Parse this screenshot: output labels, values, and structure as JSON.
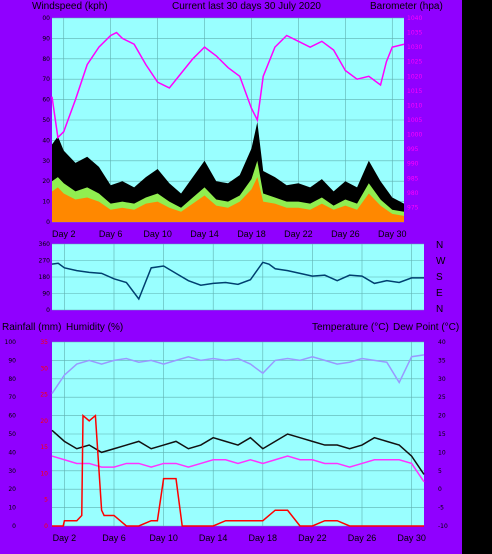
{
  "header": {
    "left": "Windspeed (kph)",
    "center": "Current last 30 days 30 July 2020",
    "right": "Barometer (hpa)"
  },
  "direction_labels": [
    "N",
    "W",
    "S",
    "E",
    "N"
  ],
  "lower_header": {
    "left1": "Rainfall (mm)",
    "left2": "Humidity (%)",
    "right1": "Temperature (°C)",
    "right2": "Dew Point (°C)"
  },
  "colors": {
    "frame": "#9000ff",
    "plot_bg": "#99ffff",
    "grid": "#5fb0b0",
    "barometer": "#ff00ff",
    "gust": "#000000",
    "wind_avg": "#90ee50",
    "wind_speed": "#ff8800",
    "direction": "#004070",
    "humidity": "#9999ff",
    "temperature": "#111111",
    "dewpoint": "#ff33ff",
    "rainfall": "#ff0000"
  },
  "chart_data": [
    {
      "type": "line",
      "title": "Current last 30 days 30 July 2020",
      "xlabel": "",
      "ylabel": "Windspeed (kph)",
      "y2label": "Barometer (hpa)",
      "x_ticks": [
        "Day 2",
        "Day 6",
        "Day 10",
        "Day 14",
        "Day 18",
        "Day 22",
        "Day 26",
        "Day 30"
      ],
      "x_tick_days": [
        2,
        6,
        10,
        14,
        18,
        22,
        26,
        30
      ],
      "xlim": [
        1,
        31
      ],
      "ylim": [
        0,
        100
      ],
      "y_ticks": [
        0,
        10,
        20,
        30,
        40,
        50,
        60,
        70,
        80,
        90,
        100
      ],
      "y2lim": [
        970,
        1040
      ],
      "y2_ticks": [
        975,
        980,
        985,
        990,
        995,
        1000,
        1005,
        1010,
        1015,
        1020,
        1025,
        1030,
        1035,
        1040
      ],
      "grid": true,
      "series": [
        {
          "name": "Barometer",
          "axis": "right",
          "x": [
            1,
            1.5,
            2,
            3,
            4,
            5,
            6,
            6.5,
            7,
            8,
            9,
            10,
            11,
            12,
            13,
            14,
            15,
            16,
            17,
            18,
            18.5,
            19,
            20,
            21,
            22,
            23,
            24,
            25,
            26,
            27,
            28,
            29,
            29.5,
            30,
            31
          ],
          "y": [
            1013,
            999,
            1001,
            1012,
            1024,
            1030,
            1034,
            1035,
            1033,
            1031,
            1024,
            1018,
            1016,
            1021,
            1026,
            1030,
            1027,
            1023,
            1020,
            1009,
            1005,
            1020,
            1030,
            1034,
            1032,
            1030,
            1032,
            1029,
            1022,
            1019,
            1020,
            1017,
            1025,
            1030,
            1031
          ]
        },
        {
          "name": "Gust",
          "axis": "left",
          "x": [
            1,
            1.5,
            2,
            3,
            4,
            5,
            6,
            7,
            8,
            9,
            10,
            11,
            12,
            13,
            14,
            15,
            16,
            17,
            18,
            18.5,
            19,
            20,
            21,
            22,
            23,
            24,
            25,
            26,
            27,
            28,
            29,
            30,
            31
          ],
          "y": [
            38,
            42,
            35,
            29,
            32,
            27,
            18,
            20,
            17,
            22,
            26,
            19,
            14,
            22,
            30,
            20,
            19,
            23,
            36,
            49,
            25,
            22,
            18,
            19,
            17,
            21,
            15,
            20,
            17,
            30,
            20,
            12,
            9
          ]
        },
        {
          "name": "Average",
          "axis": "left",
          "x": [
            1,
            1.5,
            2,
            3,
            4,
            5,
            6,
            7,
            8,
            9,
            10,
            11,
            12,
            13,
            14,
            15,
            16,
            17,
            18,
            18.5,
            19,
            20,
            21,
            22,
            23,
            24,
            25,
            26,
            27,
            28,
            29,
            30,
            31
          ],
          "y": [
            20,
            22,
            19,
            15,
            17,
            14,
            9,
            10,
            9,
            12,
            14,
            10,
            7,
            12,
            17,
            11,
            10,
            13,
            21,
            30,
            14,
            12,
            10,
            10,
            9,
            12,
            8,
            11,
            9,
            19,
            11,
            6,
            5
          ]
        },
        {
          "name": "Speed",
          "axis": "left",
          "x": [
            1,
            1.5,
            2,
            3,
            4,
            5,
            6,
            7,
            8,
            9,
            10,
            11,
            12,
            13,
            14,
            15,
            16,
            17,
            18,
            18.5,
            19,
            20,
            21,
            22,
            23,
            24,
            25,
            26,
            27,
            28,
            29,
            30,
            31
          ],
          "y": [
            15,
            17,
            14,
            11,
            12,
            10,
            6,
            7,
            6,
            9,
            10,
            7,
            5,
            9,
            13,
            8,
            7,
            10,
            16,
            22,
            10,
            9,
            7,
            7,
            6,
            9,
            6,
            8,
            6,
            14,
            8,
            4,
            3
          ]
        }
      ]
    },
    {
      "type": "line",
      "title": "",
      "ylabel": "",
      "y2_ticks": [
        "N",
        "W",
        "S",
        "E",
        "N"
      ],
      "ylim": [
        0,
        360
      ],
      "y_ticks": [
        0,
        90,
        180,
        270,
        360
      ],
      "xlim": [
        1,
        31
      ],
      "series": [
        {
          "name": "Direction",
          "x": [
            1,
            1.5,
            2,
            3,
            4,
            5,
            6,
            7,
            8,
            9,
            10,
            11,
            12,
            13,
            14,
            15,
            16,
            17,
            18,
            18.5,
            19,
            20,
            21,
            22,
            23,
            24,
            25,
            26,
            27,
            28,
            29,
            30,
            31
          ],
          "y": [
            250,
            255,
            230,
            215,
            205,
            200,
            170,
            150,
            60,
            230,
            240,
            200,
            160,
            135,
            145,
            150,
            140,
            165,
            260,
            250,
            225,
            215,
            200,
            185,
            190,
            160,
            190,
            185,
            145,
            160,
            150,
            175,
            175
          ]
        }
      ]
    },
    {
      "type": "line",
      "title": "",
      "ylabel": "Rainfall (mm) / Humidity (%)",
      "y2label": "Temperature (°C) / Dew Point (°C)",
      "ylim": [
        0,
        100
      ],
      "y_ticks": [
        0,
        10,
        20,
        30,
        40,
        50,
        60,
        70,
        80,
        90,
        100
      ],
      "rain_ticks": [
        0,
        5,
        10,
        15,
        20,
        25,
        30,
        35
      ],
      "y2lim": [
        -10,
        40
      ],
      "y2_ticks": [
        -10,
        -5,
        0,
        5,
        10,
        15,
        20,
        25,
        30,
        35,
        40
      ],
      "xlim": [
        1,
        31
      ],
      "grid": true,
      "series": [
        {
          "name": "Humidity",
          "axis": "left",
          "x": [
            1,
            2,
            3,
            4,
            5,
            6,
            7,
            8,
            9,
            10,
            11,
            12,
            13,
            14,
            15,
            16,
            17,
            18,
            19,
            20,
            21,
            22,
            23,
            24,
            25,
            26,
            27,
            28,
            29,
            30,
            31
          ],
          "y": [
            72,
            82,
            88,
            90,
            88,
            90,
            91,
            89,
            90,
            88,
            90,
            92,
            90,
            91,
            90,
            91,
            88,
            83,
            90,
            91,
            90,
            92,
            90,
            88,
            89,
            91,
            90,
            89,
            78,
            92,
            93
          ]
        },
        {
          "name": "Temperature",
          "axis": "right",
          "x": [
            1,
            2,
            3,
            4,
            5,
            6,
            7,
            8,
            9,
            10,
            11,
            12,
            13,
            14,
            15,
            16,
            17,
            18,
            19,
            20,
            21,
            22,
            23,
            24,
            25,
            26,
            27,
            28,
            29,
            30,
            31
          ],
          "y": [
            16,
            13,
            11,
            12,
            10,
            11,
            12,
            13,
            11,
            12,
            13,
            11,
            12,
            14,
            13,
            12,
            14,
            11,
            13,
            15,
            14,
            13,
            12,
            12,
            11,
            12,
            14,
            13,
            12,
            9,
            4
          ]
        },
        {
          "name": "Dew Point",
          "axis": "right",
          "x": [
            1,
            2,
            3,
            4,
            5,
            6,
            7,
            8,
            9,
            10,
            11,
            12,
            13,
            14,
            15,
            16,
            17,
            18,
            19,
            20,
            21,
            22,
            23,
            24,
            25,
            26,
            27,
            28,
            29,
            30,
            31
          ],
          "y": [
            9,
            8,
            7,
            7,
            6,
            6,
            7,
            7,
            6,
            7,
            7,
            6,
            7,
            8,
            8,
            7,
            8,
            7,
            8,
            9,
            8,
            8,
            7,
            7,
            6,
            7,
            8,
            8,
            8,
            7,
            2
          ]
        },
        {
          "name": "Rainfall",
          "axis": "rain",
          "x": [
            1,
            1.9,
            2,
            3,
            3.4,
            3.5,
            4,
            4.5,
            5,
            5.2,
            5.5,
            6,
            7,
            8,
            9,
            9.5,
            10,
            11,
            11.5,
            12,
            13,
            14,
            15,
            16,
            17,
            18,
            19,
            20,
            21,
            22,
            23,
            24,
            25,
            26,
            27,
            28,
            29,
            30,
            31
          ],
          "y": [
            0,
            0,
            1,
            1,
            2,
            21,
            20,
            21,
            3,
            2,
            2,
            2,
            0,
            0,
            1,
            1,
            9,
            9,
            0,
            0,
            0,
            0,
            1,
            1,
            1,
            1,
            3,
            3,
            0,
            0,
            1,
            1,
            0,
            0,
            0,
            0,
            0,
            0,
            0
          ]
        }
      ]
    }
  ]
}
